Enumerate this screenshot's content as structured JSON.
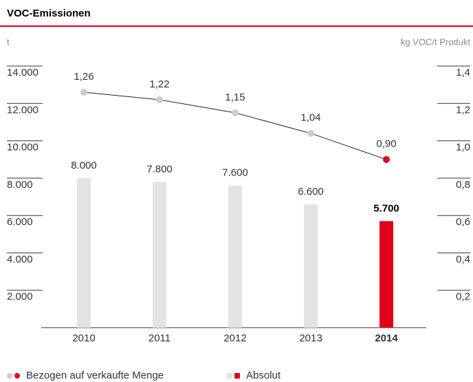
{
  "chart_data": {
    "type": "bar_line",
    "title": "VOC-Emissionen",
    "y_label": "t",
    "y2_label": "kg VOC/t Produkt",
    "categories": [
      "2010",
      "2011",
      "2012",
      "2013",
      "2014"
    ],
    "ylim": [
      0,
      14000
    ],
    "yticks": [
      {
        "value": 2000,
        "label": "2.000"
      },
      {
        "value": 4000,
        "label": "4.000"
      },
      {
        "value": 6000,
        "label": "6.000"
      },
      {
        "value": 8000,
        "label": "8.000"
      },
      {
        "value": 10000,
        "label": "10.000"
      },
      {
        "value": 12000,
        "label": "12.000"
      },
      {
        "value": 14000,
        "label": "14.000"
      }
    ],
    "y2lim": [
      0,
      1.4
    ],
    "y2ticks": [
      {
        "value": 0.2,
        "label": "0,2"
      },
      {
        "value": 0.4,
        "label": "0,4"
      },
      {
        "value": 0.6,
        "label": "0,6"
      },
      {
        "value": 0.8,
        "label": "0,8"
      },
      {
        "value": 1.0,
        "label": "1,0"
      },
      {
        "value": 1.2,
        "label": "1,2"
      },
      {
        "value": 1.4,
        "label": "1,4"
      }
    ],
    "series": [
      {
        "name": "Bezogen auf verkaufte Menge",
        "type": "line",
        "axis": "y2",
        "color": "#cccccc",
        "highlight_color": "#e2001a",
        "colors": [
          "#cccccc",
          "#cccccc",
          "#cccccc",
          "#cccccc",
          "#e2001a"
        ],
        "values": [
          1.26,
          1.22,
          1.15,
          1.04,
          0.9
        ],
        "value_labels": [
          "1,26",
          "1,22",
          "1,15",
          "1,04",
          "0,90"
        ]
      },
      {
        "name": "Absolut",
        "type": "bar",
        "color": "#e3e3e3",
        "highlight_color": "#e2001a",
        "colors": [
          "#e3e3e3",
          "#e3e3e3",
          "#e3e3e3",
          "#e3e3e3",
          "#e2001a"
        ],
        "values": [
          8000,
          7800,
          7600,
          6600,
          5700
        ],
        "value_labels": [
          "8.000",
          "7.800",
          "7.600",
          "6.600",
          "5.700"
        ]
      }
    ]
  }
}
